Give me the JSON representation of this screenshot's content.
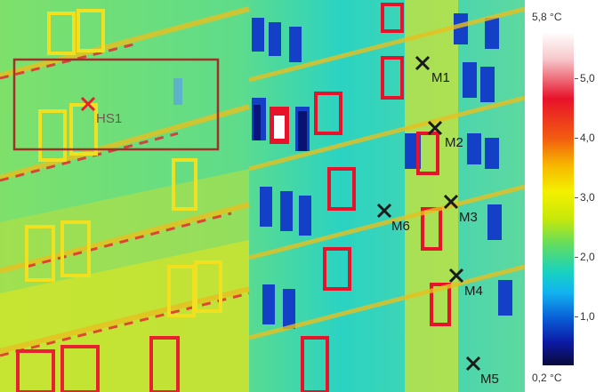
{
  "thermogram": {
    "markers": [
      {
        "id": "m1",
        "label": "M1"
      },
      {
        "id": "m2",
        "label": "M2"
      },
      {
        "id": "m3",
        "label": "M3"
      },
      {
        "id": "m4",
        "label": "M4"
      },
      {
        "id": "m5",
        "label": "M5"
      },
      {
        "id": "m6",
        "label": "M6"
      }
    ],
    "hotspot": {
      "label": "HS1"
    }
  },
  "scale": {
    "max_label": "5,8 °C",
    "min_label": "0,2 °C",
    "ticks": [
      "5,0",
      "4,0",
      "3,0",
      "2,0",
      "1,0"
    ]
  },
  "colors": {
    "marker": "#1a1a1a",
    "hotspot_marker": "#e8202a",
    "region_box": "#a03028"
  }
}
